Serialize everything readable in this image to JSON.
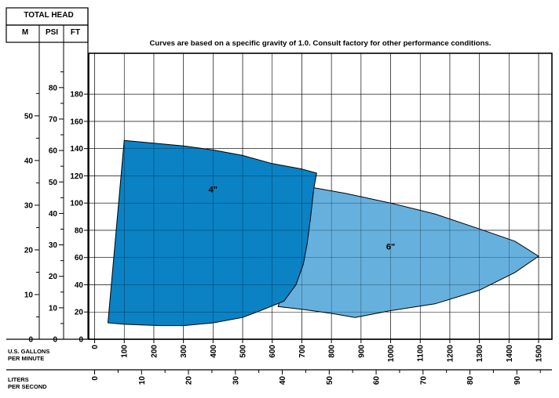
{
  "chart_data": {
    "type": "area",
    "title": "Curves are based on a specific gravity of 1.0. Consult factory for other performance conditions.",
    "header": {
      "title": "TOTAL HEAD",
      "col_m": "M",
      "col_psi": "PSI",
      "col_ft": "FT"
    },
    "xlabel_gpm": "U.S. GALLONS PER MINUTE",
    "xlabel_lps": "LITERS PER SECOND",
    "x_gpm_ticks": [
      "0",
      "100",
      "200",
      "300",
      "400",
      "500",
      "600",
      "700",
      "800",
      "900",
      "1000",
      "1100",
      "1200",
      "1300",
      "1400",
      "1500"
    ],
    "x_lps_ticks": [
      "0",
      "10",
      "20",
      "30",
      "40",
      "50",
      "60",
      "70",
      "80",
      "90"
    ],
    "y_ft_ticks": [
      "0",
      "20",
      "40",
      "60",
      "80",
      "100",
      "120",
      "140",
      "160",
      "180"
    ],
    "y_psi_ticks": [
      "0",
      "10",
      "20",
      "30",
      "40",
      "50",
      "60",
      "70",
      "80"
    ],
    "y_m_ticks": [
      "0",
      "10",
      "20",
      "30",
      "40",
      "50"
    ],
    "xlim": [
      -20,
      1545
    ],
    "ylim": [
      0,
      210
    ],
    "grid": true,
    "series": [
      {
        "name": "6\"",
        "color": "#66b0de",
        "label_at": [
          1000,
          66
        ],
        "upper": [
          [
            720,
            112
          ],
          [
            850,
            107
          ],
          [
            1000,
            100
          ],
          [
            1150,
            92
          ],
          [
            1300,
            81
          ],
          [
            1420,
            72
          ],
          [
            1500,
            61
          ]
        ],
        "lower": [
          [
            1500,
            61
          ],
          [
            1420,
            49
          ],
          [
            1300,
            36
          ],
          [
            1150,
            26
          ],
          [
            1000,
            21
          ],
          [
            880,
            16
          ],
          [
            800,
            19
          ],
          [
            700,
            22
          ],
          [
            620,
            24
          ]
        ]
      },
      {
        "name": "4\"",
        "color": "#0a82c4",
        "label_at": [
          400,
          108
        ],
        "upper": [
          [
            100,
            146
          ],
          [
            200,
            144
          ],
          [
            300,
            142
          ],
          [
            400,
            139
          ],
          [
            500,
            135
          ],
          [
            600,
            129
          ],
          [
            700,
            125
          ],
          [
            750,
            122
          ]
        ],
        "right": [
          [
            750,
            122
          ],
          [
            740,
            110
          ],
          [
            730,
            90
          ],
          [
            718,
            70
          ],
          [
            705,
            55
          ],
          [
            680,
            40
          ],
          [
            640,
            28
          ],
          [
            560,
            21
          ],
          [
            500,
            16
          ],
          [
            400,
            12
          ],
          [
            300,
            10
          ],
          [
            220,
            10
          ],
          [
            100,
            11
          ],
          [
            45,
            12
          ]
        ],
        "left": [
          [
            45,
            12
          ],
          [
            100,
            146
          ]
        ]
      }
    ]
  }
}
